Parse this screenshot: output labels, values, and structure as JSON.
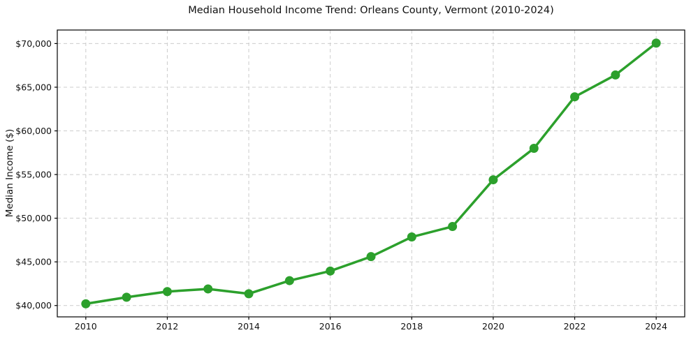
{
  "chart_data": {
    "type": "line",
    "title": "Median Household Income Trend: Orleans County, Vermont (2010-2024)",
    "xlabel": "",
    "ylabel": "Median Income ($)",
    "x": [
      2010,
      2011,
      2012,
      2013,
      2014,
      2015,
      2016,
      2017,
      2018,
      2019,
      2020,
      2021,
      2022,
      2023,
      2024
    ],
    "series": [
      {
        "name": "Median Household Income",
        "values": [
          40200,
          40950,
          41600,
          41900,
          41350,
          42850,
          43950,
          45600,
          47850,
          49050,
          54400,
          58000,
          63900,
          66400,
          70050
        ]
      }
    ],
    "x_ticks": [
      2010,
      2012,
      2014,
      2016,
      2018,
      2020,
      2022,
      2024
    ],
    "y_ticks": [
      {
        "value": 40000,
        "label": "$40,000"
      },
      {
        "value": 45000,
        "label": "$45,000"
      },
      {
        "value": 50000,
        "label": "$50,000"
      },
      {
        "value": 55000,
        "label": "$55,000"
      },
      {
        "value": 60000,
        "label": "$60,000"
      },
      {
        "value": 65000,
        "label": "$65,000"
      },
      {
        "value": 70000,
        "label": "$70,000"
      }
    ],
    "xlim": [
      2009.3,
      2024.7
    ],
    "ylim": [
      38700,
      71550
    ],
    "grid": true,
    "legend": "none",
    "line_color": "#2ca02c",
    "marker": "circle",
    "grid_color": "#cccccc",
    "axis_color": "#000000"
  }
}
